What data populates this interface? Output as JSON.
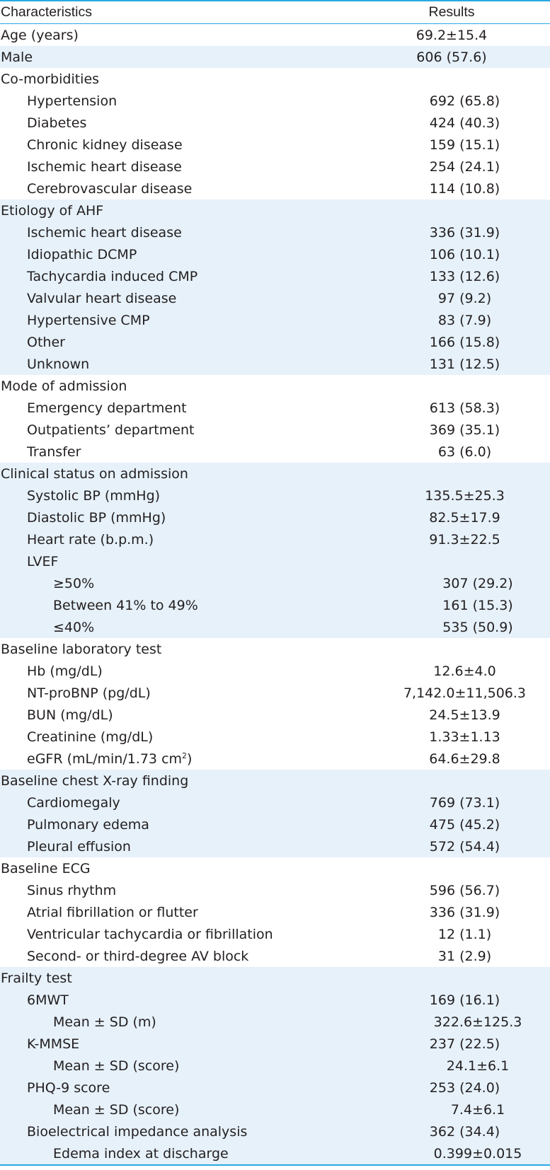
{
  "table": {
    "header": {
      "characteristics": "Characteristics",
      "results": "Results"
    },
    "rows": [
      {
        "label": "Age (years)",
        "value": "69.2±15.4"
      },
      {
        "label": "Male",
        "value": "606 (57.6)"
      },
      {
        "label": "Co-morbidities",
        "value": ""
      },
      {
        "label": "Hypertension",
        "value": "692 (65.8)"
      },
      {
        "label": "Diabetes",
        "value": "424 (40.3)"
      },
      {
        "label": "Chronic kidney disease",
        "value": "159 (15.1)"
      },
      {
        "label": "Ischemic heart disease",
        "value": "254 (24.1)"
      },
      {
        "label": "Cerebrovascular disease",
        "value": "114 (10.8)"
      },
      {
        "label": "Etiology of AHF",
        "value": ""
      },
      {
        "label": "Ischemic heart disease",
        "value": "336 (31.9)"
      },
      {
        "label": "Idiopathic DCMP",
        "value": "106 (10.1)"
      },
      {
        "label": "Tachycardia induced CMP",
        "value": "133 (12.6)"
      },
      {
        "label": "Valvular heart disease",
        "value": "97 (9.2)"
      },
      {
        "label": "Hypertensive CMP",
        "value": "83 (7.9)"
      },
      {
        "label": "Other",
        "value": "166 (15.8)"
      },
      {
        "label": "Unknown",
        "value": "131 (12.5)"
      },
      {
        "label": "Mode of admission",
        "value": ""
      },
      {
        "label": "Emergency department",
        "value": "613 (58.3)"
      },
      {
        "label": "Outpatients’ department",
        "value": "369 (35.1)"
      },
      {
        "label": "Transfer",
        "value": "63 (6.0)"
      },
      {
        "label": "Clinical status on admission",
        "value": ""
      },
      {
        "label": "Systolic BP (mmHg)",
        "value": "135.5±25.3"
      },
      {
        "label": "Diastolic BP (mmHg)",
        "value": "82.5±17.9"
      },
      {
        "label": "Heart rate (b.p.m.)",
        "value": "91.3±22.5"
      },
      {
        "label": "LVEF",
        "value": ""
      },
      {
        "label": "≥50%",
        "value": "307 (29.2)"
      },
      {
        "label": "Between 41% to 49%",
        "value": "161 (15.3)"
      },
      {
        "label": "≤40%",
        "value": "535 (50.9)"
      },
      {
        "label": "Baseline laboratory test",
        "value": ""
      },
      {
        "label": "Hb (mg/dL)",
        "value": "12.6±4.0"
      },
      {
        "label": "NT-proBNP (pg/dL)",
        "value": "7,142.0±11,506.3"
      },
      {
        "label": "BUN (mg/dL)",
        "value": "24.5±13.9"
      },
      {
        "label": "Creatinine (mg/dL)",
        "value": "1.33±1.13"
      },
      {
        "label": "eGFR (mL/min/1.73 cm",
        "label_sup": "2",
        "label_end": ")",
        "value": "64.6±29.8"
      },
      {
        "label": "Baseline chest X-ray finding",
        "value": ""
      },
      {
        "label": "Cardiomegaly",
        "value": "769 (73.1)"
      },
      {
        "label": "Pulmonary edema",
        "value": "475 (45.2)"
      },
      {
        "label": "Pleural effusion",
        "value": "572 (54.4)"
      },
      {
        "label": "Baseline ECG",
        "value": ""
      },
      {
        "label": "Sinus rhythm",
        "value": "596 (56.7)"
      },
      {
        "label": "Atrial fibrillation or flutter",
        "value": "336 (31.9)"
      },
      {
        "label": "Ventricular tachycardia or fibrillation",
        "value": "12 (1.1)"
      },
      {
        "label": "Second- or third-degree AV block",
        "value": "31 (2.9)"
      },
      {
        "label": "Frailty test",
        "value": ""
      },
      {
        "label": "6MWT",
        "value": "169 (16.1)"
      },
      {
        "label": "Mean ± SD (m)",
        "value": "322.6±125.3"
      },
      {
        "label": "K-MMSE",
        "value": "237 (22.5)"
      },
      {
        "label": "Mean ± SD (score)",
        "value": "24.1±6.1"
      },
      {
        "label": "PHQ-9 score",
        "value": "253 (24.0)"
      },
      {
        "label": "Mean ± SD (score)",
        "value": "7.4±6.1"
      },
      {
        "label": "Bioelectrical impedance analysis",
        "value": "362 (34.4)"
      },
      {
        "label": "Edema index at discharge",
        "value": "0.399±0.015"
      }
    ]
  }
}
